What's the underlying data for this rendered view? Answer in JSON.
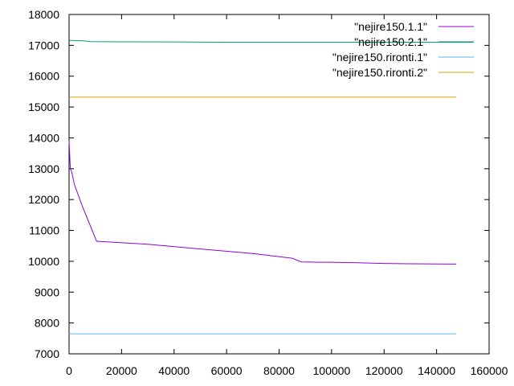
{
  "chart_data": {
    "type": "line",
    "title": "",
    "xlabel": "",
    "ylabel": "",
    "xlim": [
      0,
      160000
    ],
    "ylim": [
      7000,
      18000
    ],
    "xticks": [
      0,
      20000,
      40000,
      60000,
      80000,
      100000,
      120000,
      140000,
      160000
    ],
    "yticks": [
      7000,
      8000,
      9000,
      10000,
      11000,
      12000,
      13000,
      14000,
      15000,
      16000,
      17000,
      18000
    ],
    "xtick_labels": [
      "0",
      "20000",
      "40000",
      "60000",
      "80000",
      "100000",
      "120000",
      "140000",
      "160000"
    ],
    "ytick_labels": [
      "7000",
      "8000",
      "9000",
      "10000",
      "11000",
      "12000",
      "13000",
      "14000",
      "15000",
      "16000",
      "17000",
      "18000"
    ],
    "grid": false,
    "legend_position": "top-right",
    "series": [
      {
        "name": "\"nejire150.1.1\"",
        "color": "#9400d3",
        "x": [
          0,
          200,
          500,
          1000,
          2000,
          5000,
          10500,
          30000,
          50000,
          70000,
          85000,
          88500,
          95000,
          100000,
          110000,
          120000,
          130000,
          140000,
          147500
        ],
        "y": [
          13900,
          13500,
          13000,
          12900,
          12500,
          11800,
          10650,
          10550,
          10400,
          10250,
          10100,
          9980,
          9970,
          9970,
          9950,
          9930,
          9920,
          9915,
          9910
        ]
      },
      {
        "name": "\"nejire150.2.1\"",
        "color": "#009e73",
        "x": [
          0,
          5000,
          8000,
          20000,
          40000,
          60000,
          80000,
          100000,
          120000,
          140000,
          154000
        ],
        "y": [
          17160,
          17150,
          17120,
          17115,
          17110,
          17100,
          17100,
          17100,
          17100,
          17100,
          17100
        ]
      },
      {
        "name": "\"nejire150.rironti.1\"",
        "color": "#56b4e9",
        "x": [
          0,
          147500
        ],
        "y": [
          7650,
          7650
        ]
      },
      {
        "name": "\"nejire150.rironti.2\"",
        "color": "#e69f00",
        "x": [
          0,
          147500
        ],
        "y": [
          15320,
          15320
        ]
      }
    ]
  }
}
